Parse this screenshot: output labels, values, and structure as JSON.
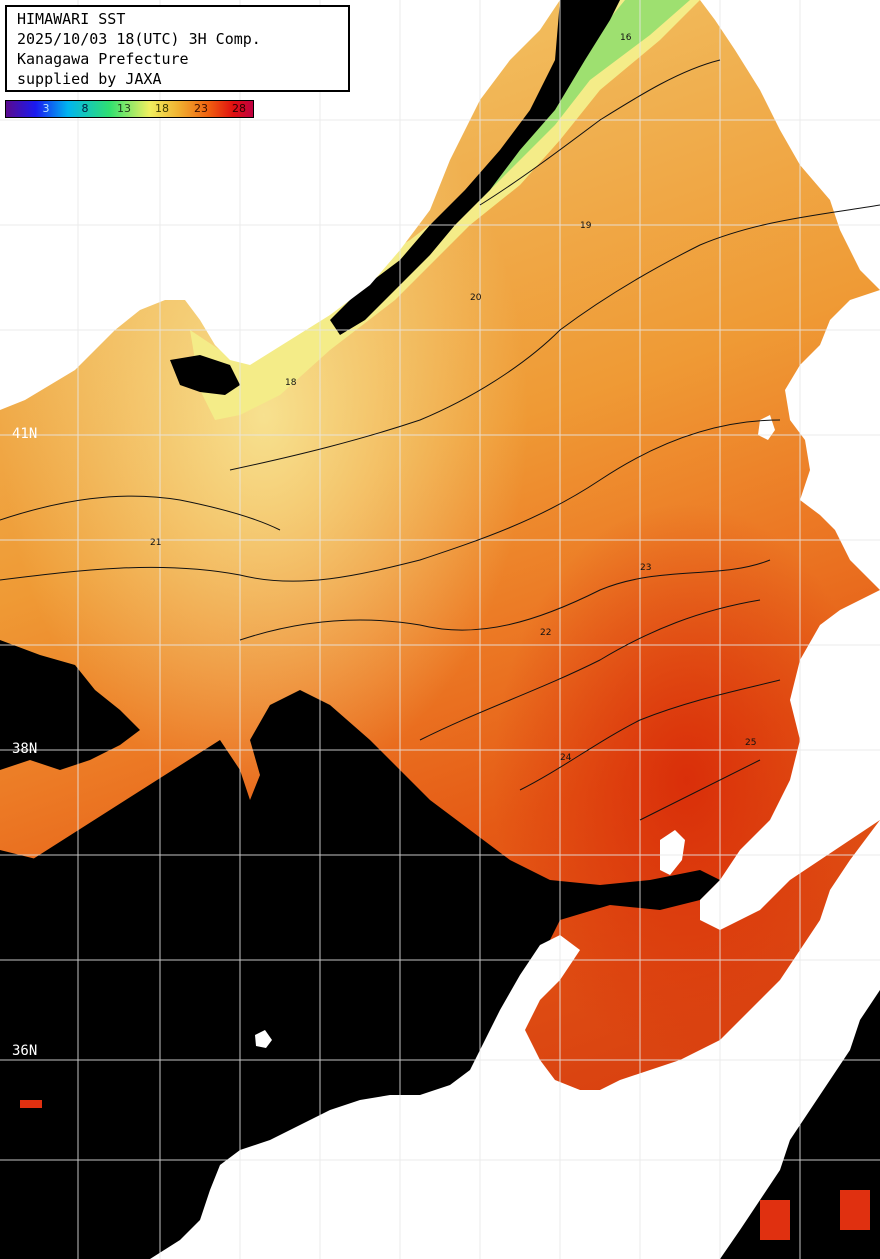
{
  "info": {
    "title": "HIMAWARI SST",
    "datetime": "2025/10/03 18(UTC) 3H Comp.",
    "prefecture": "Kanagawa Prefecture",
    "supplier": "supplied by JAXA"
  },
  "colorbar": {
    "ticks": [
      "3",
      "8",
      "13",
      "18",
      "23",
      "28"
    ],
    "tick_colors": [
      "#001a6e",
      "#002a6e",
      "#1d4a1d",
      "#3a3a00",
      "#4a1500",
      "#2a0000"
    ],
    "stops": [
      "#5a0a8e",
      "#1a1af0",
      "#00b4f0",
      "#30e070",
      "#f0f060",
      "#f0b030",
      "#f06010",
      "#e01010",
      "#c00040"
    ]
  },
  "latitude_labels": [
    "41N",
    "38N",
    "36N"
  ],
  "map_colors": {
    "land": "#ffffff",
    "no_data": "#000000",
    "grid": "#e8e8e8",
    "contour": "#111111"
  },
  "contour_labels": [
    "16",
    "18",
    "19",
    "20",
    "21",
    "22",
    "23",
    "24",
    "25"
  ]
}
